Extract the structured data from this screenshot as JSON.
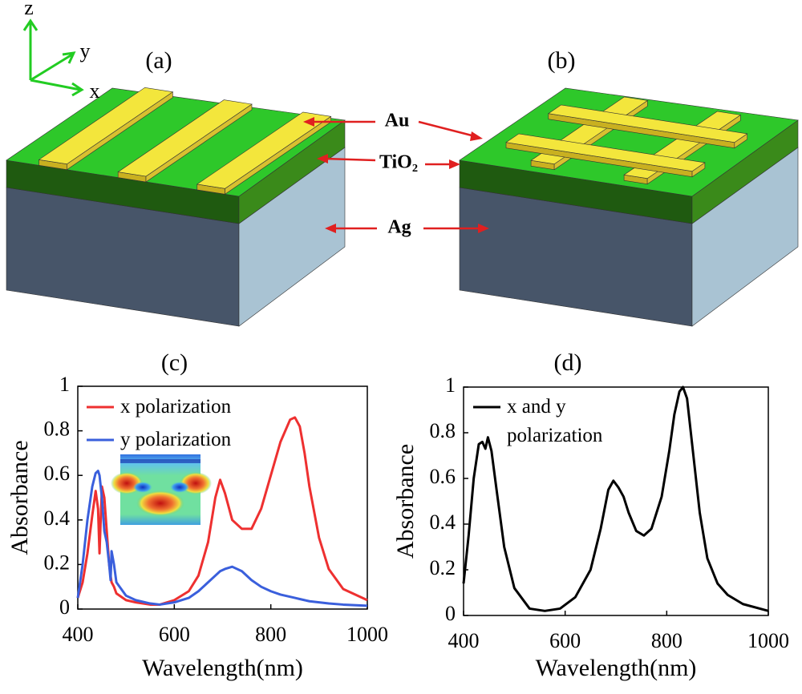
{
  "diagram": {
    "axes": {
      "z": "z",
      "y": "y",
      "x": "x"
    },
    "panels": [
      "(a)",
      "(b)"
    ],
    "layers": {
      "au": "Au",
      "tio2": "TiO₂",
      "ag": "Ag"
    }
  },
  "chart_data": [
    {
      "type": "line",
      "title": "(c)",
      "xlabel": "Wavelength(nm)",
      "ylabel": "Absorbance",
      "x": [
        400,
        410,
        420,
        430,
        437,
        442,
        445,
        450,
        455,
        460,
        465,
        468,
        470,
        475,
        480,
        500,
        520,
        550,
        570,
        600,
        630,
        650,
        670,
        685,
        695,
        705,
        720,
        740,
        760,
        780,
        800,
        820,
        840,
        850,
        860,
        870,
        880,
        900,
        920,
        950,
        1000
      ],
      "series": [
        {
          "name": "x polarization",
          "color": "#ee3030",
          "values": [
            0.05,
            0.12,
            0.25,
            0.42,
            0.53,
            0.45,
            0.25,
            0.55,
            0.5,
            0.35,
            0.2,
            0.15,
            0.12,
            0.1,
            0.07,
            0.04,
            0.03,
            0.02,
            0.02,
            0.04,
            0.08,
            0.15,
            0.3,
            0.5,
            0.58,
            0.52,
            0.4,
            0.36,
            0.36,
            0.45,
            0.6,
            0.75,
            0.85,
            0.86,
            0.82,
            0.7,
            0.55,
            0.32,
            0.18,
            0.09,
            0.04
          ]
        },
        {
          "name": "y polarization",
          "color": "#3a5fdc",
          "values": [
            0.05,
            0.2,
            0.4,
            0.55,
            0.61,
            0.62,
            0.6,
            0.5,
            0.35,
            0.3,
            0.2,
            0.13,
            0.26,
            0.2,
            0.12,
            0.06,
            0.04,
            0.025,
            0.02,
            0.03,
            0.05,
            0.08,
            0.12,
            0.15,
            0.17,
            0.18,
            0.19,
            0.17,
            0.13,
            0.1,
            0.08,
            0.065,
            0.055,
            0.05,
            0.045,
            0.04,
            0.035,
            0.03,
            0.025,
            0.02,
            0.015
          ]
        }
      ],
      "xlim": [
        400,
        1000
      ],
      "xticks": [
        400,
        600,
        800,
        1000
      ],
      "ylim": [
        0,
        1
      ],
      "yticks": [
        0,
        0.2,
        0.4,
        0.6,
        0.8,
        1
      ]
    },
    {
      "type": "line",
      "title": "(d)",
      "xlabel": "Wavelength(nm)",
      "ylabel": "Absorbance",
      "x": [
        400,
        410,
        420,
        430,
        437,
        443,
        448,
        455,
        465,
        480,
        500,
        530,
        560,
        590,
        620,
        650,
        670,
        685,
        695,
        705,
        715,
        725,
        740,
        755,
        770,
        790,
        805,
        815,
        825,
        832,
        840,
        850,
        865,
        880,
        900,
        920,
        950,
        1000
      ],
      "series": [
        {
          "name": "x and y polarization",
          "color": "#000000",
          "values": [
            0.14,
            0.35,
            0.6,
            0.75,
            0.76,
            0.73,
            0.78,
            0.72,
            0.55,
            0.3,
            0.12,
            0.03,
            0.02,
            0.03,
            0.08,
            0.2,
            0.38,
            0.55,
            0.59,
            0.56,
            0.52,
            0.45,
            0.37,
            0.35,
            0.38,
            0.52,
            0.72,
            0.88,
            0.98,
            1.0,
            0.95,
            0.75,
            0.45,
            0.25,
            0.14,
            0.09,
            0.05,
            0.02
          ]
        }
      ],
      "xlim": [
        400,
        1000
      ],
      "xticks": [
        400,
        600,
        800,
        1000
      ],
      "ylim": [
        0,
        1
      ],
      "yticks": [
        0,
        0.2,
        0.4,
        0.6,
        0.8,
        1
      ]
    }
  ]
}
